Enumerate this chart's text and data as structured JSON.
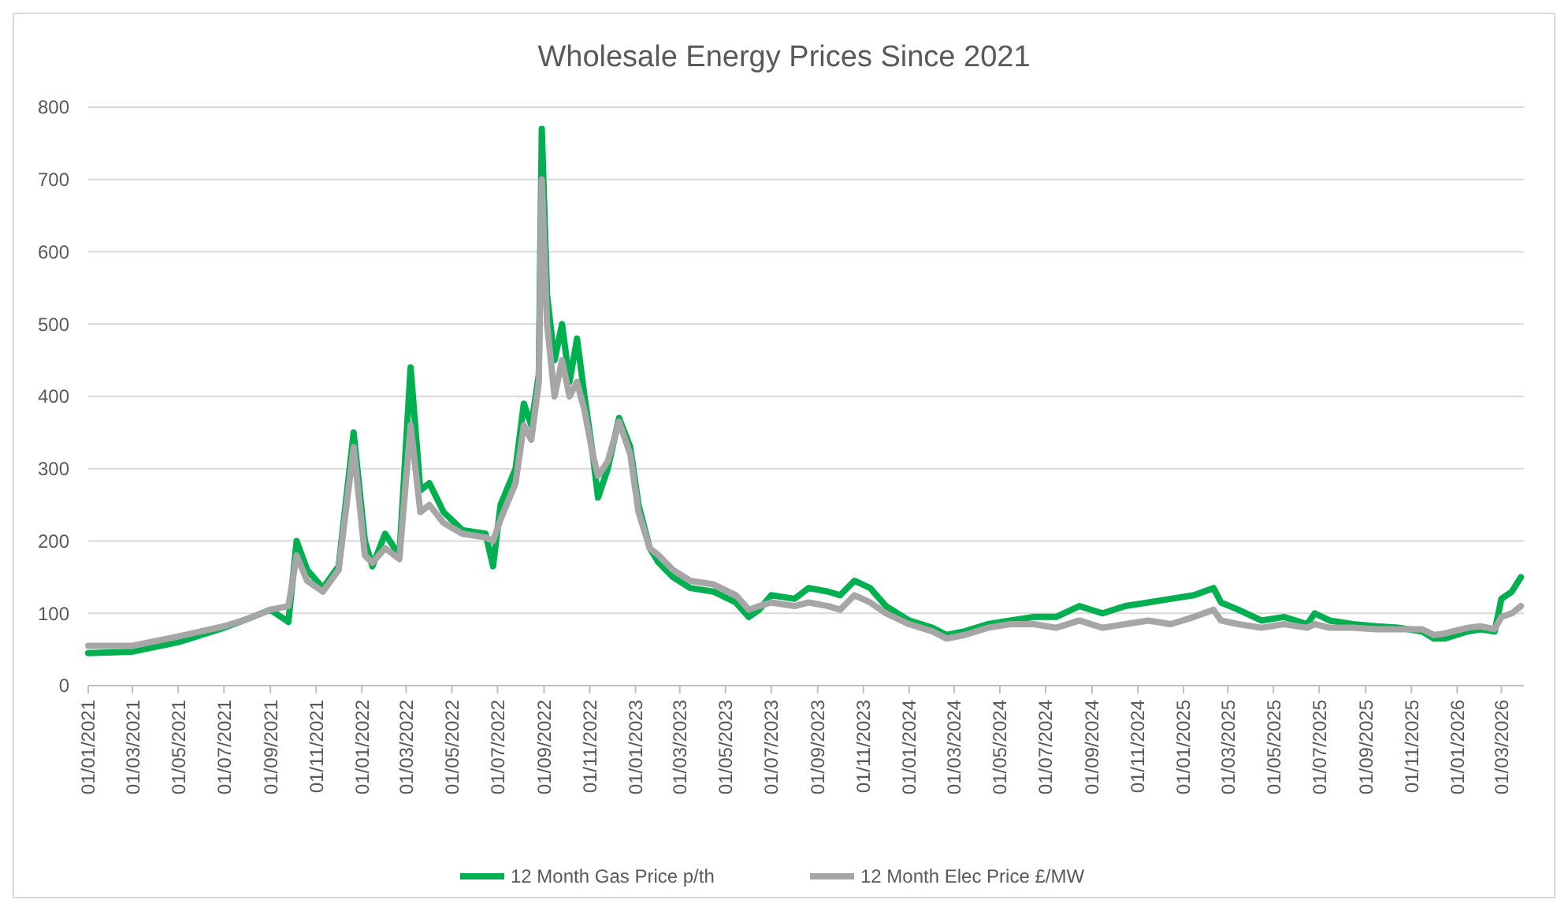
{
  "chart_data": {
    "type": "line",
    "title": "Wholesale Energy Prices Since 2021",
    "x": [
      "2021-01-01",
      "2021-03-01",
      "2021-05-01",
      "2021-07-01",
      "2021-08-01",
      "2021-09-01",
      "2021-09-25",
      "2021-10-06",
      "2021-10-20",
      "2021-11-10",
      "2021-12-01",
      "2021-12-21",
      "2022-01-05",
      "2022-01-15",
      "2022-02-01",
      "2022-02-20",
      "2022-03-07",
      "2022-03-20",
      "2022-04-01",
      "2022-04-20",
      "2022-05-15",
      "2022-06-15",
      "2022-06-25",
      "2022-07-05",
      "2022-07-25",
      "2022-08-05",
      "2022-08-15",
      "2022-08-25",
      "2022-08-29",
      "2022-09-05",
      "2022-09-15",
      "2022-09-25",
      "2022-10-05",
      "2022-10-15",
      "2022-10-25",
      "2022-11-05",
      "2022-11-12",
      "2022-11-25",
      "2022-12-10",
      "2022-12-25",
      "2023-01-05",
      "2023-01-20",
      "2023-02-01",
      "2023-02-20",
      "2023-03-15",
      "2023-04-15",
      "2023-05-15",
      "2023-06-01",
      "2023-06-15",
      "2023-07-01",
      "2023-08-01",
      "2023-08-20",
      "2023-09-15",
      "2023-10-01",
      "2023-10-20",
      "2023-11-10",
      "2023-12-01",
      "2024-01-01",
      "2024-02-01",
      "2024-02-20",
      "2024-03-15",
      "2024-04-15",
      "2024-05-15",
      "2024-06-15",
      "2024-07-15",
      "2024-08-15",
      "2024-09-15",
      "2024-10-15",
      "2024-11-15",
      "2024-12-15",
      "2025-01-15",
      "2025-02-10",
      "2025-02-20",
      "2025-03-15",
      "2025-04-15",
      "2025-05-15",
      "2025-06-15",
      "2025-06-25",
      "2025-07-15",
      "2025-08-15",
      "2025-09-15",
      "2025-10-15",
      "2025-11-15",
      "2025-12-01",
      "2025-12-15",
      "2026-01-15",
      "2026-02-01",
      "2026-02-20",
      "2026-03-01",
      "2026-03-15",
      "2026-03-27"
    ],
    "series": [
      {
        "name": "12 Month Gas Price p/th",
        "color": "#00b050",
        "values": [
          45,
          47,
          60,
          80,
          92,
          105,
          88,
          200,
          160,
          135,
          165,
          350,
          200,
          165,
          210,
          180,
          440,
          270,
          280,
          240,
          215,
          210,
          165,
          250,
          300,
          390,
          360,
          430,
          770,
          540,
          450,
          500,
          420,
          480,
          400,
          320,
          260,
          300,
          370,
          330,
          250,
          190,
          170,
          150,
          135,
          130,
          115,
          95,
          105,
          125,
          120,
          135,
          130,
          125,
          145,
          135,
          110,
          90,
          80,
          70,
          75,
          85,
          90,
          95,
          95,
          110,
          100,
          110,
          115,
          120,
          125,
          135,
          115,
          105,
          90,
          95,
          85,
          100,
          90,
          85,
          82,
          80,
          75,
          65,
          65,
          75,
          78,
          75,
          120,
          130,
          150
        ]
      },
      {
        "name": "12 Month Elec Price £/MW",
        "color": "#a6a6a6",
        "values": [
          55,
          55,
          68,
          82,
          92,
          105,
          110,
          180,
          145,
          130,
          160,
          330,
          180,
          170,
          190,
          175,
          360,
          240,
          250,
          225,
          210,
          205,
          200,
          230,
          280,
          360,
          340,
          420,
          700,
          500,
          400,
          450,
          400,
          420,
          380,
          320,
          290,
          310,
          365,
          320,
          240,
          190,
          180,
          160,
          145,
          140,
          125,
          105,
          110,
          115,
          110,
          115,
          110,
          105,
          125,
          115,
          100,
          85,
          75,
          65,
          70,
          80,
          85,
          85,
          80,
          90,
          80,
          85,
          90,
          85,
          95,
          105,
          90,
          85,
          80,
          85,
          80,
          85,
          80,
          80,
          78,
          78,
          78,
          70,
          72,
          80,
          82,
          78,
          95,
          100,
          110
        ]
      }
    ],
    "xlim": [
      "2021-01-01",
      "2026-03-31"
    ],
    "xticks": [
      {
        "value": "2021-01-01",
        "label": "01/01/2021"
      },
      {
        "value": "2021-03-01",
        "label": "01/03/2021"
      },
      {
        "value": "2021-05-01",
        "label": "01/05/2021"
      },
      {
        "value": "2021-07-01",
        "label": "01/07/2021"
      },
      {
        "value": "2021-09-01",
        "label": "01/09/2021"
      },
      {
        "value": "2021-11-01",
        "label": "01/11/2021"
      },
      {
        "value": "2022-01-01",
        "label": "01/01/2022"
      },
      {
        "value": "2022-03-01",
        "label": "01/03/2022"
      },
      {
        "value": "2022-05-01",
        "label": "01/05/2022"
      },
      {
        "value": "2022-07-01",
        "label": "01/07/2022"
      },
      {
        "value": "2022-09-01",
        "label": "01/09/2022"
      },
      {
        "value": "2022-11-01",
        "label": "01/11/2022"
      },
      {
        "value": "2023-01-01",
        "label": "01/01/2023"
      },
      {
        "value": "2023-03-01",
        "label": "01/03/2023"
      },
      {
        "value": "2023-05-01",
        "label": "01/05/2023"
      },
      {
        "value": "2023-07-01",
        "label": "01/07/2023"
      },
      {
        "value": "2023-09-01",
        "label": "01/09/2023"
      },
      {
        "value": "2023-11-01",
        "label": "01/11/2023"
      },
      {
        "value": "2024-01-01",
        "label": "01/01/2024"
      },
      {
        "value": "2024-03-01",
        "label": "01/03/2024"
      },
      {
        "value": "2024-05-01",
        "label": "01/05/2024"
      },
      {
        "value": "2024-07-01",
        "label": "01/07/2024"
      },
      {
        "value": "2024-09-01",
        "label": "01/09/2024"
      },
      {
        "value": "2024-11-01",
        "label": "01/11/2024"
      },
      {
        "value": "2025-01-01",
        "label": "01/01/2025"
      },
      {
        "value": "2025-03-01",
        "label": "01/03/2025"
      },
      {
        "value": "2025-05-01",
        "label": "01/05/2025"
      },
      {
        "value": "2025-07-01",
        "label": "01/07/2025"
      },
      {
        "value": "2025-09-01",
        "label": "01/09/2025"
      },
      {
        "value": "2025-11-01",
        "label": "01/11/2025"
      },
      {
        "value": "2026-01-01",
        "label": "01/01/2026"
      },
      {
        "value": "2026-03-01",
        "label": "01/03/2026"
      }
    ],
    "ylim": [
      0,
      800
    ],
    "yticks": [
      0,
      100,
      200,
      300,
      400,
      500,
      600,
      700,
      800
    ],
    "grid": "y",
    "legend": "bottom",
    "marker": "none",
    "line_style": "solid"
  }
}
